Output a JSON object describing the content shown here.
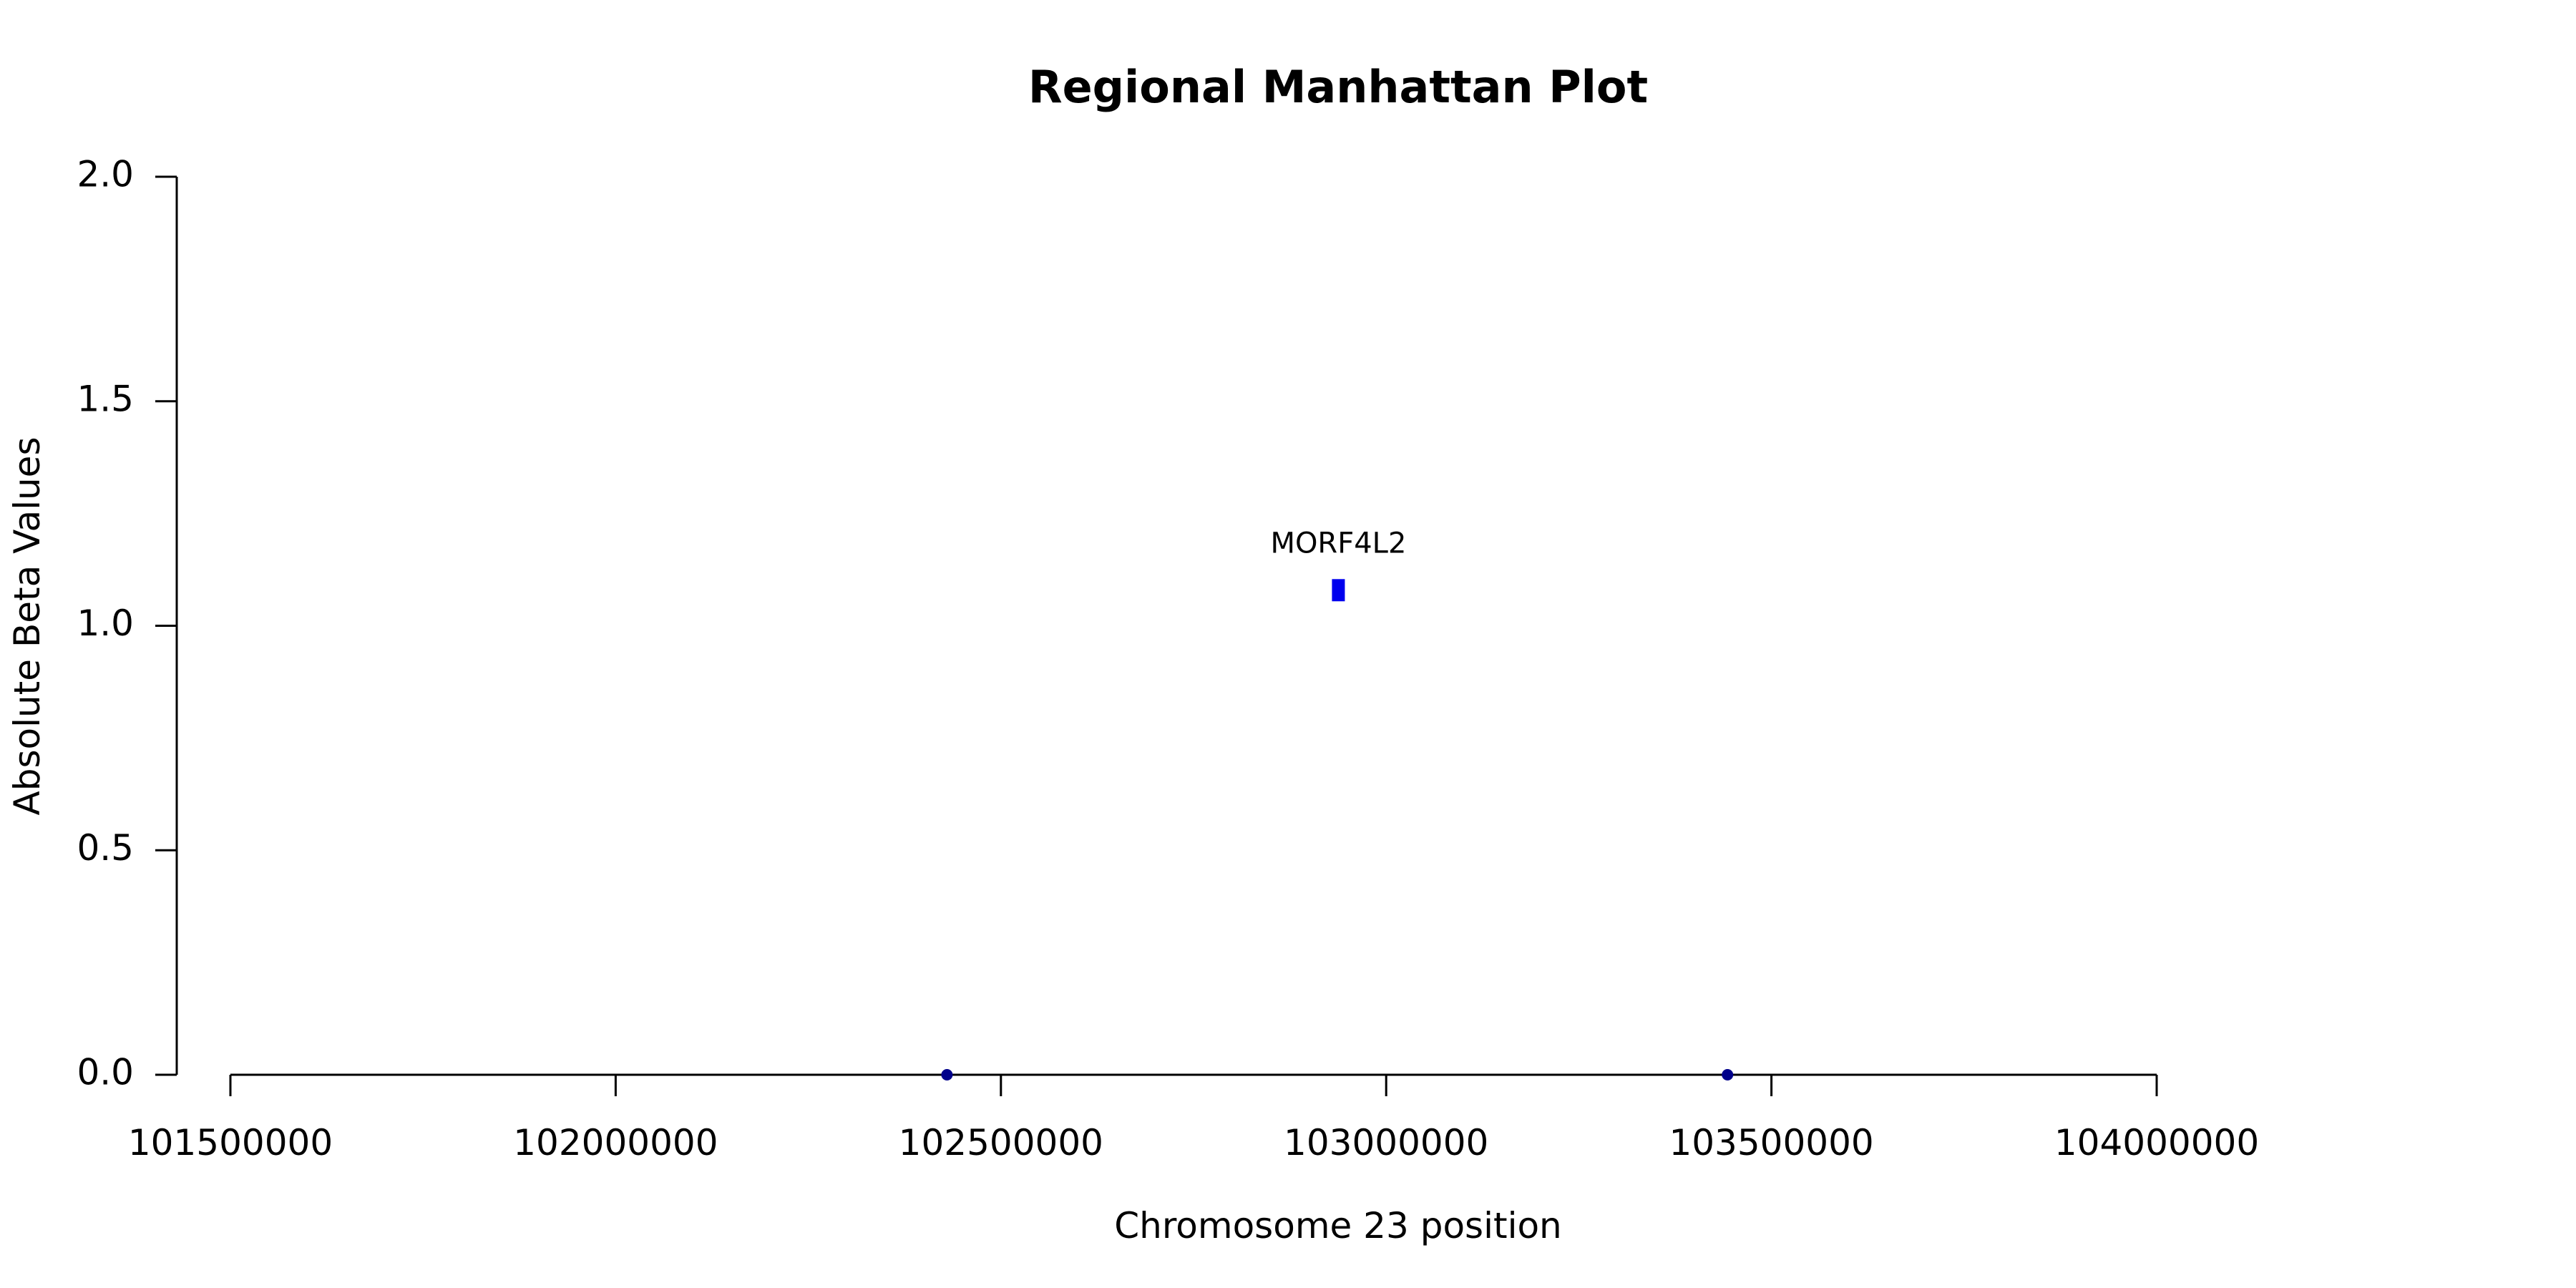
{
  "chart_data": {
    "type": "scatter",
    "title": "Regional Manhattan Plot",
    "xlabel": "Chromosome 23 position",
    "ylabel": "Absolute Beta Values",
    "xlim": [
      101500000,
      104000000
    ],
    "ylim": [
      0,
      2
    ],
    "x_ticks": [
      101500000,
      102000000,
      102500000,
      103000000,
      103500000,
      104000000
    ],
    "x_tick_labels": [
      "101500000",
      "102000000",
      "102500000",
      "103000000",
      "103500000",
      "104000000"
    ],
    "y_ticks": [
      0,
      0.5,
      1,
      1.5,
      2
    ],
    "y_tick_labels": [
      "0.0",
      "0.5",
      "1.0",
      "1.5",
      "2.0"
    ],
    "grid": false,
    "series": [
      {
        "marker": "circle",
        "color": "#00008b",
        "points": [
          {
            "x": 102430000,
            "y": 0.0
          },
          {
            "x": 103443000,
            "y": 0.0
          }
        ]
      },
      {
        "marker": "bar",
        "color": "#0000ee",
        "points": [
          {
            "x": 102938000,
            "y": 1.08
          }
        ]
      }
    ],
    "annotations": [
      {
        "text": "MORF4L2",
        "x": 102938000,
        "y": 1.08
      }
    ]
  }
}
